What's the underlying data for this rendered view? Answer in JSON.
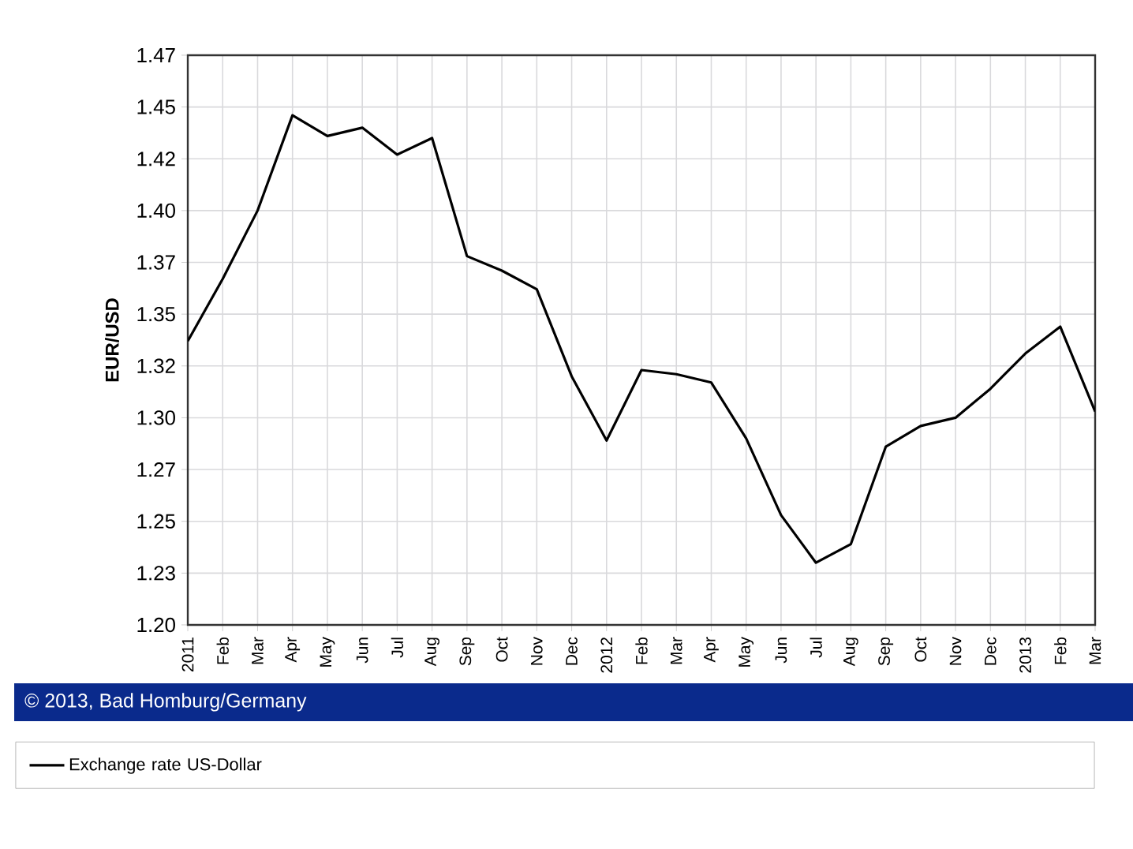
{
  "chart_data": {
    "type": "line",
    "ylabel": "EUR/USD",
    "annotations": [
      "© 2013, Bad Homburg/Germany"
    ],
    "categories": [
      "2011",
      "Feb",
      "Mar",
      "Apr",
      "May",
      "Jun",
      "Jul",
      "Aug",
      "Sep",
      "Oct",
      "Nov",
      "Dec",
      "2012",
      "Feb",
      "Mar",
      "Apr",
      "May",
      "Jun",
      "Jul",
      "Aug",
      "Sep",
      "Oct",
      "Nov",
      "Dec",
      "2013",
      "Feb",
      "Mar"
    ],
    "series": [
      {
        "name": "Exchange rate US-Dollar",
        "color": "#000000",
        "values": [
          1.337,
          1.367,
          1.4,
          1.446,
          1.436,
          1.44,
          1.427,
          1.435,
          1.378,
          1.371,
          1.362,
          1.32,
          1.289,
          1.323,
          1.321,
          1.317,
          1.29,
          1.253,
          1.23,
          1.239,
          1.286,
          1.296,
          1.3,
          1.314,
          1.331,
          1.344,
          1.303
        ]
      }
    ],
    "ylim": [
      1.2,
      1.475
    ],
    "yticks": [
      {
        "value": 1.2,
        "label": "1.20"
      },
      {
        "value": 1.225,
        "label": "1.23"
      },
      1.25,
      {
        "value": 1.275,
        "label": "1.27"
      },
      {
        "value": 1.3,
        "label": "1.30"
      },
      {
        "value": 1.325,
        "label": "1.32"
      },
      1.35,
      {
        "value": 1.375,
        "label": "1.37"
      },
      {
        "value": 1.4,
        "label": "1.40"
      },
      {
        "value": 1.425,
        "label": "1.42"
      },
      1.45,
      {
        "value": 1.475,
        "label": "1.47"
      }
    ],
    "grid": true,
    "legend": "bottom",
    "marker": "none",
    "line_style": "solid"
  }
}
